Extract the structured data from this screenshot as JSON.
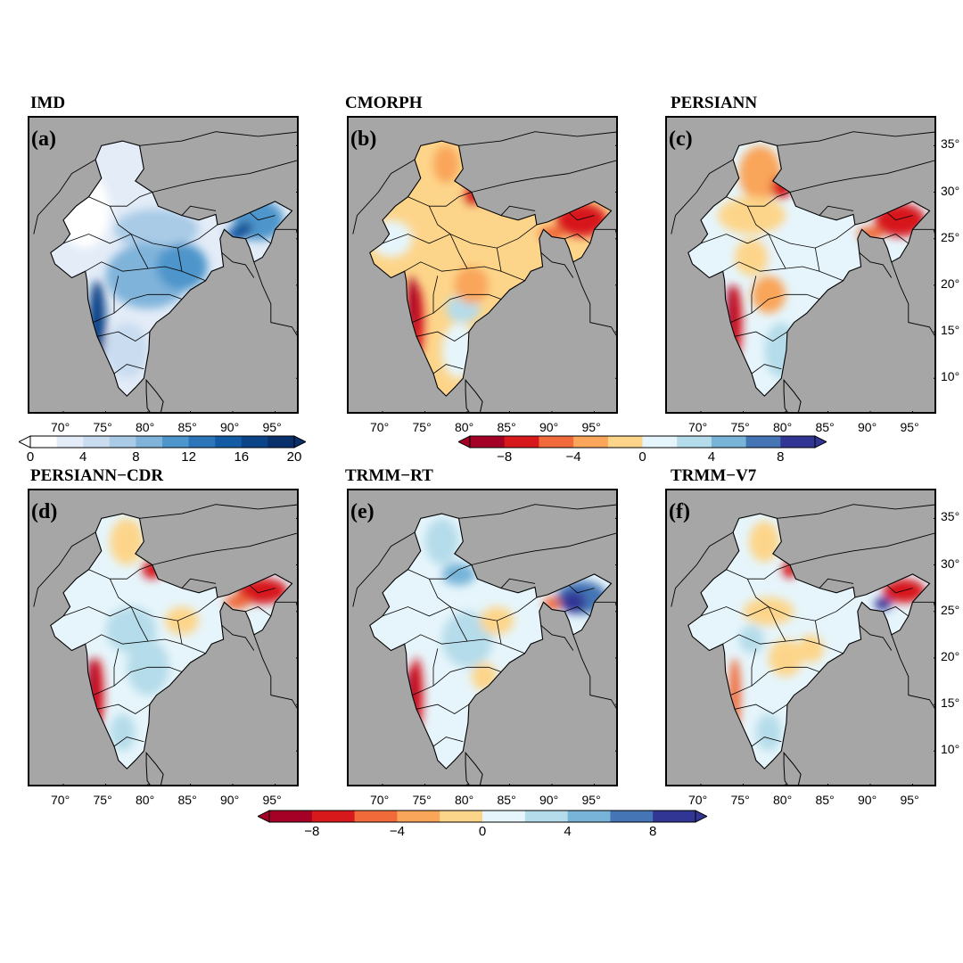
{
  "panels": [
    {
      "title": "IMD",
      "letter": "(a)",
      "scheme": "abs"
    },
    {
      "title": "CMORPH",
      "letter": "(b)",
      "scheme": "diff_b"
    },
    {
      "title": "PERSIANN",
      "letter": "(c)",
      "scheme": "diff_c"
    },
    {
      "title": "PERSIANN−CDR",
      "letter": "(d)",
      "scheme": "diff_d"
    },
    {
      "title": "TRMM−RT",
      "letter": "(e)",
      "scheme": "diff_e"
    },
    {
      "title": "TRMM−V7",
      "letter": "(f)",
      "scheme": "diff_f"
    }
  ],
  "lon_ticks": [
    "70°",
    "75°",
    "80°",
    "85°",
    "90°",
    "95°"
  ],
  "lat_ticks": [
    "35°",
    "30°",
    "25°",
    "20°",
    "15°",
    "10°"
  ],
  "colorbar_abs": {
    "labels": [
      "0",
      "4",
      "8",
      "12",
      "16",
      "20"
    ],
    "colors": [
      "#ffffff",
      "#e3ecf7",
      "#c9dcf0",
      "#a9cbe6",
      "#7fb3da",
      "#4d95cb",
      "#2b75b8",
      "#145ba5",
      "#0c4488",
      "#08306b"
    ]
  },
  "colorbar_diff": {
    "labels": [
      "−8",
      "−4",
      "0",
      "4",
      "8"
    ],
    "colors": [
      "#a50026",
      "#d7191c",
      "#f06a3a",
      "#f9a55a",
      "#fdd58a",
      "#e6f5fb",
      "#b5dcea",
      "#77b4d8",
      "#4575b4",
      "#313695"
    ]
  },
  "colors": {
    "land_bg": "#a6a6a6",
    "border": "#000000"
  }
}
